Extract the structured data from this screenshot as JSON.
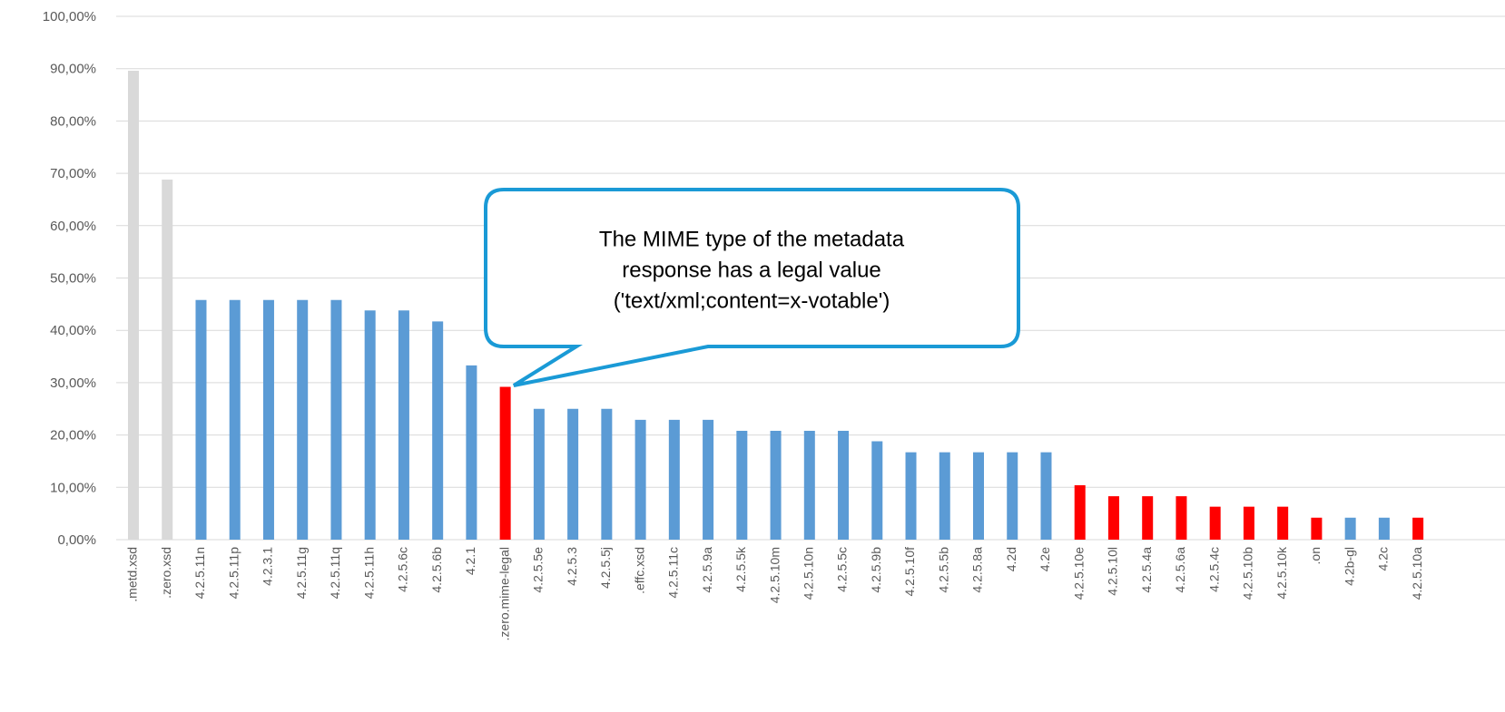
{
  "chart_data": {
    "type": "bar",
    "categories": [
      ".metd.xsd",
      ".zero.xsd",
      "4.2.5.11n",
      "4.2.5.11p",
      "4.2.3.1",
      "4.2.5.11g",
      "4.2.5.11q",
      "4.2.5.11h",
      "4.2.5.6c",
      "4.2.5.6b",
      "4.2.1",
      ".zero.mime-legal",
      "4.2.5.5e",
      "4.2.5.3",
      "4.2.5.5j",
      ".effc.xsd",
      "4.2.5.11c",
      "4.2.5.9a",
      "4.2.5.5k",
      "4.2.5.10m",
      "4.2.5.10n",
      "4.2.5.5c",
      "4.2.5.9b",
      "4.2.5.10f",
      "4.2.5.5b",
      "4.2.5.8a",
      "4.2d",
      "4.2e",
      "4.2.5.10e",
      "4.2.5.10l",
      "4.2.5.4a",
      "4.2.5.6a",
      "4.2.5.4c",
      "4.2.5.10b",
      "4.2.5.10k",
      ".on",
      "4.2b-gl",
      "4.2c",
      "4.2.5.10a"
    ],
    "values": [
      89.6,
      68.8,
      45.8,
      45.8,
      45.8,
      45.8,
      45.8,
      43.8,
      43.8,
      41.7,
      33.3,
      29.2,
      25,
      25,
      25,
      22.9,
      22.9,
      22.9,
      20.8,
      20.8,
      20.8,
      20.8,
      18.8,
      16.7,
      16.7,
      16.7,
      16.7,
      16.7,
      10.4,
      8.3,
      8.3,
      8.3,
      6.3,
      6.3,
      6.3,
      4.2,
      4.2,
      4.2,
      4.2
    ],
    "colors": [
      "#d9d9d9",
      "#d9d9d9",
      "#5b9bd5",
      "#5b9bd5",
      "#5b9bd5",
      "#5b9bd5",
      "#5b9bd5",
      "#5b9bd5",
      "#5b9bd5",
      "#5b9bd5",
      "#5b9bd5",
      "#ff0000",
      "#5b9bd5",
      "#5b9bd5",
      "#5b9bd5",
      "#5b9bd5",
      "#5b9bd5",
      "#5b9bd5",
      "#5b9bd5",
      "#5b9bd5",
      "#5b9bd5",
      "#5b9bd5",
      "#5b9bd5",
      "#5b9bd5",
      "#5b9bd5",
      "#5b9bd5",
      "#5b9bd5",
      "#5b9bd5",
      "#ff0000",
      "#ff0000",
      "#ff0000",
      "#ff0000",
      "#ff0000",
      "#ff0000",
      "#ff0000",
      "#ff0000",
      "#5b9bd5",
      "#5b9bd5",
      "#ff0000"
    ],
    "ylim": [
      0,
      100
    ],
    "yticks": [
      {
        "value": 0,
        "label": "0,00%"
      },
      {
        "value": 10,
        "label": "10,00%"
      },
      {
        "value": 20,
        "label": "20,00%"
      },
      {
        "value": 30,
        "label": "30,00%"
      },
      {
        "value": 40,
        "label": "40,00%"
      },
      {
        "value": 50,
        "label": "50,00%"
      },
      {
        "value": 60,
        "label": "60,00%"
      },
      {
        "value": 70,
        "label": "70,00%"
      },
      {
        "value": 80,
        "label": "80,00%"
      },
      {
        "value": 90,
        "label": "90,00%"
      },
      {
        "value": 100,
        "label": "100,00%"
      }
    ],
    "grid": true,
    "annotation": [
      "The MIME type of the metadata",
      "response has a legal value",
      "('text/xml;content=x-votable')"
    ]
  }
}
